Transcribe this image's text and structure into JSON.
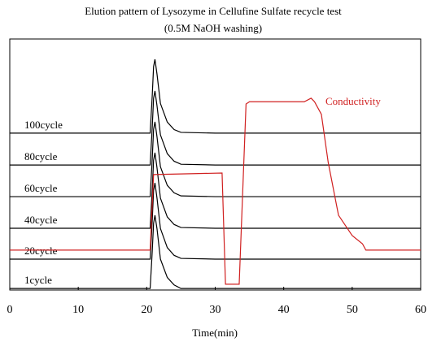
{
  "chart_data": {
    "type": "line",
    "title": "Elution pattern of Lysozyme in Cellufine Sulfate recycle test",
    "subtitle": "(0.5M   NaOH washing)",
    "x_label": "Time(min)",
    "xlim": [
      0,
      60
    ],
    "xticks": [
      0,
      10,
      20,
      30,
      40,
      50,
      60
    ],
    "ylim": [
      0,
      100
    ],
    "series": [
      {
        "name": "1cycle",
        "color": "#000000",
        "x": [
          0,
          20.5,
          20.8,
          21.0,
          21.2,
          21.5,
          22,
          23,
          24,
          25,
          30,
          40,
          50,
          60
        ],
        "values": [
          0.6,
          0.6,
          15.2,
          26.6,
          29.8,
          24.4,
          12.3,
          5,
          2,
          0.6,
          0.6,
          0.6,
          0.6,
          0.6
        ]
      },
      {
        "name": "20cycle",
        "color": "#000000",
        "x": [
          0,
          20.5,
          20.8,
          21.0,
          21.2,
          21.5,
          22,
          23,
          24,
          25,
          30,
          40,
          50,
          60
        ],
        "values": [
          12.3,
          12.3,
          27.5,
          39.6,
          42.7,
          36.6,
          24.5,
          16.9,
          13.8,
          12.6,
          12.3,
          12.3,
          12.3,
          12.3
        ]
      },
      {
        "name": "40cycle",
        "color": "#000000",
        "x": [
          0,
          20.5,
          20.8,
          21.0,
          21.2,
          21.5,
          22,
          23,
          24,
          25,
          30,
          40,
          50,
          60
        ],
        "values": [
          24.6,
          24.6,
          39.7,
          51.7,
          54.7,
          48.7,
          36.6,
          29.1,
          26.1,
          24.9,
          24.6,
          24.6,
          24.6,
          24.6
        ]
      },
      {
        "name": "60cycle",
        "color": "#000000",
        "x": [
          0,
          20.5,
          20.8,
          21.0,
          21.2,
          21.5,
          22,
          23,
          24,
          25,
          30,
          40,
          50,
          60
        ],
        "values": [
          37.2,
          37.2,
          52.1,
          64,
          67,
          61,
          49.1,
          41.7,
          38.7,
          37.5,
          37.2,
          37.2,
          37.2,
          37.2
        ]
      },
      {
        "name": "80cycle",
        "color": "#000000",
        "x": [
          0,
          20.5,
          20.8,
          21.0,
          21.2,
          21.5,
          22,
          23,
          24,
          25,
          30,
          40,
          50,
          60
        ],
        "values": [
          49.8,
          49.8,
          64.6,
          76.4,
          79.3,
          73.4,
          61.8,
          54.3,
          51.3,
          50.1,
          49.8,
          49.8,
          49.8,
          49.8
        ]
      },
      {
        "name": "100cycle",
        "color": "#000000",
        "x": [
          0,
          20.5,
          20.8,
          21.0,
          21.2,
          21.5,
          22,
          23,
          24,
          25,
          30,
          40,
          50,
          60
        ],
        "values": [
          62.5,
          62.5,
          77.2,
          89,
          91.9,
          86,
          74.3,
          66.9,
          63.9,
          62.8,
          62.5,
          62.5,
          62.5,
          62.5
        ]
      },
      {
        "name": "Conductivity",
        "color": "#d02020",
        "x": [
          0,
          20.5,
          21,
          31,
          31.5,
          33.5,
          34.5,
          35,
          43,
          44,
          44.5,
          45.5,
          46.5,
          48,
          50,
          51.5,
          52,
          60
        ],
        "values": [
          15.9,
          15.9,
          46,
          46.6,
          2.3,
          2.3,
          74.1,
          75,
          75,
          76.4,
          75,
          70,
          50.8,
          29.8,
          21.7,
          18.4,
          15.9,
          15.9
        ]
      }
    ]
  }
}
